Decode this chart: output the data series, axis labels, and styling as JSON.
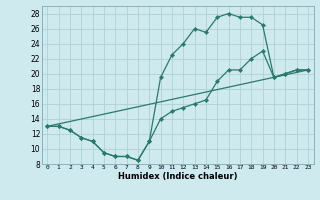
{
  "xlabel": "Humidex (Indice chaleur)",
  "bg_color": "#ceeaee",
  "grid_color": "#b0d0d8",
  "line_color": "#2a7a6a",
  "xlim": [
    -0.5,
    23.5
  ],
  "ylim": [
    8,
    29
  ],
  "xticks": [
    0,
    1,
    2,
    3,
    4,
    5,
    6,
    7,
    8,
    9,
    10,
    11,
    12,
    13,
    14,
    15,
    16,
    17,
    18,
    19,
    20,
    21,
    22,
    23
  ],
  "yticks": [
    8,
    10,
    12,
    14,
    16,
    18,
    20,
    22,
    24,
    26,
    28
  ],
  "line1_x": [
    0,
    1,
    2,
    3,
    4,
    5,
    6,
    7,
    8,
    9,
    10,
    11,
    12,
    13,
    14,
    15,
    16,
    17,
    18,
    19,
    20,
    21,
    22,
    23
  ],
  "line1_y": [
    13,
    13,
    12.5,
    11.5,
    11,
    9.5,
    9,
    9,
    8.5,
    11,
    19.5,
    22.5,
    24,
    26,
    25.5,
    27.5,
    28,
    27.5,
    27.5,
    26.5,
    19.5,
    20,
    20.5,
    20.5
  ],
  "line2_x": [
    0,
    1,
    2,
    3,
    4,
    5,
    6,
    7,
    8,
    9,
    10,
    11,
    12,
    13,
    14,
    15,
    16,
    17,
    18,
    19,
    20,
    21,
    22,
    23
  ],
  "line2_y": [
    13,
    13,
    12.5,
    11.5,
    11,
    9.5,
    9,
    9,
    8.5,
    11,
    14,
    15,
    15.5,
    16,
    16.5,
    19,
    20.5,
    20.5,
    22,
    23,
    19.5,
    20,
    20.5,
    20.5
  ],
  "line3_x": [
    0,
    23
  ],
  "line3_y": [
    13,
    20.5
  ]
}
